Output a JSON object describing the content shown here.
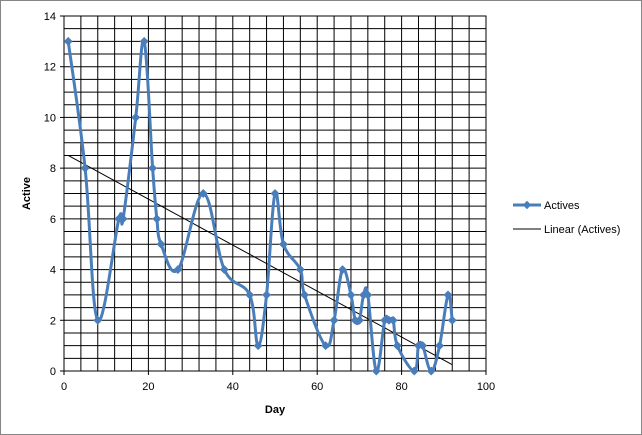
{
  "chart_data": {
    "type": "line",
    "xlabel": "Day",
    "ylabel": "Active",
    "xlim": [
      0,
      100
    ],
    "ylim": [
      0,
      14
    ],
    "x_ticks": [
      0,
      20,
      40,
      60,
      80,
      100
    ],
    "y_ticks": [
      0,
      2,
      4,
      6,
      8,
      10,
      12,
      14
    ],
    "grid": true,
    "legend_position": "right",
    "series": [
      {
        "name": "Actives",
        "color": "#4a7ebb",
        "marker": "diamond",
        "smooth": true,
        "x": [
          1,
          5,
          8,
          13,
          14,
          17,
          19,
          21,
          22,
          23,
          27,
          33,
          38,
          44,
          46,
          48,
          50,
          52,
          56,
          57,
          62,
          64,
          66,
          68,
          69,
          70,
          71,
          72,
          74,
          76,
          77,
          78,
          79,
          83,
          84,
          85,
          87,
          89,
          91,
          92
        ],
        "y": [
          13,
          8,
          2,
          6,
          6,
          10,
          13,
          8,
          6,
          5,
          4,
          7,
          4,
          3,
          1,
          3,
          7,
          5,
          4,
          3,
          1,
          2,
          4,
          3,
          2,
          2,
          3,
          3,
          0,
          2,
          2,
          2,
          1,
          0,
          1,
          1,
          0,
          1,
          3,
          2
        ]
      },
      {
        "name": "Linear (Actives)",
        "color": "#000000",
        "type": "trendline",
        "x": [
          1,
          92
        ],
        "y": [
          8.5,
          0.25
        ]
      }
    ]
  }
}
